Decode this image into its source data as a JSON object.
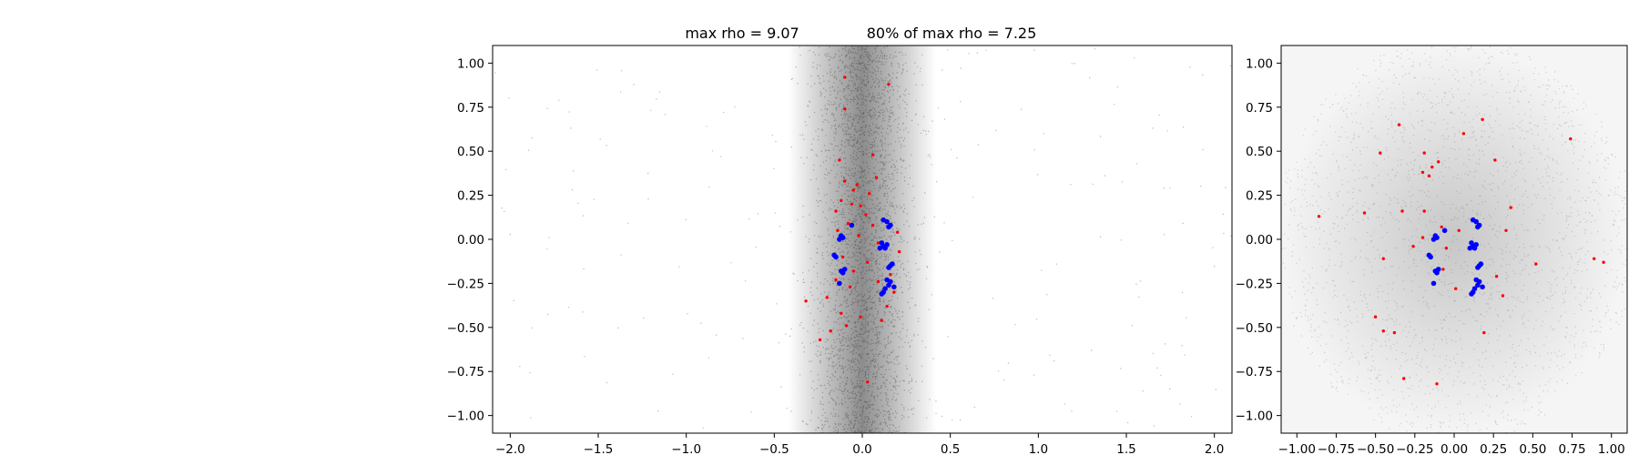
{
  "figure": {
    "title_left": "max rho = 9.07",
    "title_right": "80% of max rho = 7.25",
    "colors": {
      "background_cloud": "#000000",
      "red_points": "#ff0000",
      "blue_points": "#0000ff"
    }
  },
  "chart_data": [
    {
      "type": "scatter",
      "title": "max rho = 9.07          80% of max rho = 7.25",
      "xlim": [
        -2.1,
        2.1
      ],
      "ylim": [
        -1.1,
        1.1
      ],
      "x_ticks": [
        -2.0,
        -1.5,
        -1.0,
        -0.5,
        0.0,
        0.5,
        1.0,
        1.5,
        2.0
      ],
      "x_tick_labels": [
        "−2.0",
        "−1.5",
        "−1.0",
        "−0.5",
        "0.0",
        "0.5",
        "1.0",
        "1.5",
        "2.0"
      ],
      "y_ticks": [
        1.0,
        0.75,
        0.5,
        0.25,
        0.0,
        -0.25,
        -0.5,
        -0.75,
        -1.0
      ],
      "y_tick_labels": [
        "1.00",
        "0.75",
        "0.50",
        "0.25",
        "0.00",
        "−0.25",
        "−0.50",
        "−0.75",
        "−1.00"
      ],
      "grid": false,
      "series": [
        {
          "color": "#ff0000",
          "points": [
            [
              -0.1,
              0.92
            ],
            [
              0.15,
              0.88
            ],
            [
              -0.1,
              0.74
            ],
            [
              0.06,
              0.48
            ],
            [
              -0.13,
              0.45
            ],
            [
              0.08,
              0.35
            ],
            [
              -0.1,
              0.33
            ],
            [
              -0.03,
              0.31
            ],
            [
              -0.05,
              0.28
            ],
            [
              0.04,
              0.26
            ],
            [
              -0.12,
              0.22
            ],
            [
              -0.06,
              0.2
            ],
            [
              -0.01,
              0.19
            ],
            [
              -0.15,
              0.16
            ],
            [
              0.02,
              0.14
            ],
            [
              -0.08,
              0.09
            ],
            [
              0.06,
              0.08
            ],
            [
              -0.14,
              0.05
            ],
            [
              0.2,
              0.04
            ],
            [
              -0.02,
              0.02
            ],
            [
              0.09,
              -0.02
            ],
            [
              0.21,
              -0.07
            ],
            [
              -0.11,
              -0.1
            ],
            [
              0.03,
              -0.13
            ],
            [
              -0.05,
              -0.18
            ],
            [
              0.16,
              -0.2
            ],
            [
              -0.15,
              -0.23
            ],
            [
              0.09,
              -0.24
            ],
            [
              -0.07,
              -0.27
            ],
            [
              0.18,
              -0.3
            ],
            [
              -0.2,
              -0.33
            ],
            [
              -0.32,
              -0.35
            ],
            [
              0.14,
              -0.38
            ],
            [
              -0.12,
              -0.42
            ],
            [
              -0.01,
              -0.44
            ],
            [
              0.11,
              -0.46
            ],
            [
              -0.09,
              -0.49
            ],
            [
              -0.18,
              -0.52
            ],
            [
              -0.24,
              -0.57
            ],
            [
              0.03,
              -0.81
            ]
          ]
        },
        {
          "color": "#0000ff",
          "points": [
            [
              0.12,
              0.11
            ],
            [
              0.14,
              0.1
            ],
            [
              0.16,
              0.08
            ],
            [
              0.15,
              0.07
            ],
            [
              -0.06,
              0.08
            ],
            [
              -0.12,
              0.02
            ],
            [
              -0.13,
              0.0
            ],
            [
              -0.11,
              0.01
            ],
            [
              0.11,
              -0.02
            ],
            [
              0.12,
              -0.04
            ],
            [
              0.1,
              -0.05
            ],
            [
              0.14,
              -0.03
            ],
            [
              0.13,
              -0.05
            ],
            [
              -0.16,
              -0.09
            ],
            [
              -0.15,
              -0.1
            ],
            [
              -0.1,
              -0.17
            ],
            [
              -0.12,
              -0.18
            ],
            [
              -0.11,
              -0.19
            ],
            [
              0.16,
              -0.15
            ],
            [
              0.15,
              -0.16
            ],
            [
              0.17,
              -0.14
            ],
            [
              0.14,
              -0.23
            ],
            [
              0.16,
              -0.24
            ],
            [
              0.15,
              -0.26
            ],
            [
              0.13,
              -0.28
            ],
            [
              0.12,
              -0.3
            ],
            [
              0.11,
              -0.31
            ],
            [
              0.18,
              -0.27
            ],
            [
              -0.13,
              -0.25
            ]
          ]
        }
      ]
    },
    {
      "type": "scatter",
      "xlim": [
        -1.1,
        1.1
      ],
      "ylim": [
        -1.1,
        1.1
      ],
      "x_ticks": [
        -1.0,
        -0.75,
        -0.5,
        -0.25,
        0.0,
        0.25,
        0.5,
        0.75,
        1.0
      ],
      "x_tick_labels": [
        "−1.00",
        "−0.75",
        "−0.50",
        "−0.25",
        "0.00",
        "0.25",
        "0.50",
        "0.75",
        "1.00"
      ],
      "y_ticks": [
        1.0,
        0.75,
        0.5,
        0.25,
        0.0,
        -0.25,
        -0.5,
        -0.75,
        -1.0
      ],
      "y_tick_labels": [
        "1.00",
        "0.75",
        "0.50",
        "0.25",
        "0.00",
        "−0.25",
        "−0.50",
        "−0.75",
        "−1.00"
      ],
      "grid": false,
      "series": [
        {
          "color": "#ff0000",
          "points": [
            [
              0.18,
              0.68
            ],
            [
              -0.35,
              0.65
            ],
            [
              0.06,
              0.6
            ],
            [
              0.74,
              0.57
            ],
            [
              -0.47,
              0.49
            ],
            [
              -0.19,
              0.49
            ],
            [
              0.26,
              0.45
            ],
            [
              -0.1,
              0.44
            ],
            [
              -0.14,
              0.41
            ],
            [
              -0.2,
              0.38
            ],
            [
              -0.16,
              0.36
            ],
            [
              0.36,
              0.18
            ],
            [
              -0.57,
              0.15
            ],
            [
              -0.19,
              0.16
            ],
            [
              -0.33,
              0.16
            ],
            [
              -0.86,
              0.13
            ],
            [
              -0.08,
              0.07
            ],
            [
              0.03,
              0.05
            ],
            [
              0.33,
              0.05
            ],
            [
              -0.2,
              0.01
            ],
            [
              -0.26,
              -0.04
            ],
            [
              -0.05,
              -0.05
            ],
            [
              -0.45,
              -0.11
            ],
            [
              0.52,
              -0.14
            ],
            [
              0.89,
              -0.11
            ],
            [
              0.95,
              -0.13
            ],
            [
              0.27,
              -0.21
            ],
            [
              0.01,
              -0.28
            ],
            [
              0.31,
              -0.32
            ],
            [
              -0.5,
              -0.44
            ],
            [
              -0.45,
              -0.52
            ],
            [
              -0.38,
              -0.53
            ],
            [
              0.19,
              -0.53
            ],
            [
              -0.32,
              -0.79
            ],
            [
              -0.11,
              -0.82
            ],
            [
              -0.07,
              -0.17
            ]
          ]
        },
        {
          "color": "#0000ff",
          "points": [
            [
              0.12,
              0.11
            ],
            [
              0.14,
              0.1
            ],
            [
              0.16,
              0.08
            ],
            [
              0.15,
              0.07
            ],
            [
              -0.06,
              0.05
            ],
            [
              -0.12,
              0.02
            ],
            [
              -0.13,
              0.0
            ],
            [
              -0.11,
              0.01
            ],
            [
              0.11,
              -0.02
            ],
            [
              0.12,
              -0.04
            ],
            [
              0.1,
              -0.05
            ],
            [
              0.14,
              -0.03
            ],
            [
              0.13,
              -0.05
            ],
            [
              -0.16,
              -0.09
            ],
            [
              -0.15,
              -0.1
            ],
            [
              -0.1,
              -0.17
            ],
            [
              -0.12,
              -0.18
            ],
            [
              -0.11,
              -0.19
            ],
            [
              0.16,
              -0.15
            ],
            [
              0.15,
              -0.16
            ],
            [
              0.17,
              -0.14
            ],
            [
              0.14,
              -0.23
            ],
            [
              0.16,
              -0.24
            ],
            [
              0.15,
              -0.26
            ],
            [
              0.13,
              -0.28
            ],
            [
              0.12,
              -0.3
            ],
            [
              0.11,
              -0.31
            ],
            [
              0.18,
              -0.27
            ],
            [
              -0.13,
              -0.25
            ]
          ]
        }
      ]
    }
  ]
}
